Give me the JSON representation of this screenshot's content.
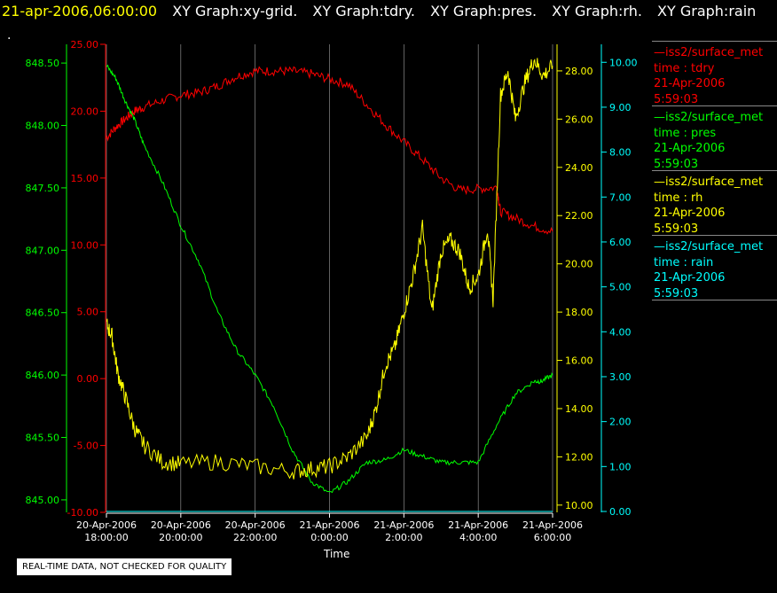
{
  "title": {
    "timestamp": "21-apr-2006,06:00:00",
    "graphs": [
      "XY Graph:xy-grid.",
      "XY Graph:tdry.",
      "XY Graph:pres.",
      "XY Graph:rh.",
      "XY Graph:rain"
    ],
    "dot": "."
  },
  "footer": "REAL-TIME DATA, NOT CHECKED FOR QUALITY",
  "colors": {
    "tdry": "#ff0000",
    "pres": "#00ff00",
    "rh": "#ffff00",
    "rain": "#00ffff",
    "grid": "#cccccc"
  },
  "legend": [
    {
      "station": "—iss2/surface_met",
      "field": "time : tdry",
      "date": "21-Apr-2006",
      "time": "5:59:03",
      "color": "#ff0000"
    },
    {
      "station": "—iss2/surface_met",
      "field": "time : pres",
      "date": "21-Apr-2006",
      "time": "5:59:03",
      "color": "#00ff00"
    },
    {
      "station": "—iss2/surface_met",
      "field": "time : rh",
      "date": "21-Apr-2006",
      "time": "5:59:03",
      "color": "#ffff00"
    },
    {
      "station": "—iss2/surface_met",
      "field": "time : rain",
      "date": "21-Apr-2006",
      "time": "5:59:03",
      "color": "#00ffff"
    }
  ],
  "chart_data": {
    "type": "line",
    "xlabel": "Time",
    "x_ticks": [
      {
        "date": "20-Apr-2006",
        "time": "18:00:00"
      },
      {
        "date": "20-Apr-2006",
        "time": "20:00:00"
      },
      {
        "date": "20-Apr-2006",
        "time": "22:00:00"
      },
      {
        "date": "21-Apr-2006",
        "time": "0:00:00"
      },
      {
        "date": "21-Apr-2006",
        "time": "2:00:00"
      },
      {
        "date": "21-Apr-2006",
        "time": "4:00:00"
      },
      {
        "date": "21-Apr-2006",
        "time": "6:00:00"
      }
    ],
    "x_range_hours": [
      0,
      12
    ],
    "axes": {
      "pres": {
        "range": [
          844.9,
          848.65
        ],
        "ticks": [
          "845.00",
          "845.50",
          "846.00",
          "846.50",
          "847.00",
          "847.50",
          "848.00",
          "848.50"
        ]
      },
      "tdry": {
        "range": [
          -10,
          25
        ],
        "ticks": [
          "-10.00",
          "-5.00",
          "0.00",
          "5.00",
          "10.00",
          "15.00",
          "20.00",
          "25.00"
        ]
      },
      "rh": {
        "range": [
          9.7,
          29.1
        ],
        "ticks": [
          "10.00",
          "12.00",
          "14.00",
          "16.00",
          "18.00",
          "20.00",
          "22.00",
          "24.00",
          "26.00",
          "28.00"
        ]
      },
      "rain": {
        "range": [
          -0.02,
          10.4
        ],
        "ticks": [
          "0.00",
          "1.00",
          "2.00",
          "3.00",
          "4.00",
          "5.00",
          "6.00",
          "7.00",
          "8.00",
          "9.00",
          "10.00"
        ]
      }
    },
    "series": [
      {
        "key": "tdry",
        "name": "time : tdry",
        "x": [
          0,
          0.25,
          0.5,
          0.75,
          1,
          1.5,
          2,
          2.5,
          3,
          3.5,
          4,
          4.5,
          5,
          5.5,
          6,
          6.5,
          7,
          7.5,
          8,
          8.5,
          9,
          9.5,
          10,
          10.5,
          10.6,
          11,
          11.5,
          12
        ],
        "y": [
          18,
          18.8,
          19.4,
          20,
          20.3,
          20.8,
          21.2,
          21.4,
          21.9,
          22.6,
          23,
          23,
          23,
          22.8,
          22.4,
          22,
          20.5,
          19,
          17.7,
          16.4,
          15,
          14.1,
          14.2,
          14.3,
          12.5,
          12,
          11.4,
          11
        ]
      },
      {
        "key": "pres",
        "name": "time : pres",
        "x": [
          0,
          0.25,
          0.5,
          0.75,
          1,
          1.5,
          2,
          2.5,
          3,
          3.5,
          4,
          4.5,
          5,
          5.5,
          6,
          6.5,
          7,
          7.5,
          8,
          8.5,
          9,
          9.5,
          10,
          10.5,
          11,
          11.5,
          11.7,
          12
        ],
        "y": [
          848.48,
          848.38,
          848.2,
          848.05,
          847.85,
          847.55,
          847.2,
          846.9,
          846.5,
          846.2,
          846.0,
          845.75,
          845.4,
          845.15,
          845.05,
          845.15,
          845.3,
          845.32,
          845.4,
          845.35,
          845.3,
          845.3,
          845.3,
          845.6,
          845.85,
          845.95,
          845.95,
          846.0
        ]
      },
      {
        "key": "rh",
        "name": "time : rh",
        "x": [
          0,
          0.15,
          0.3,
          0.5,
          0.75,
          1,
          1.5,
          2,
          3,
          4,
          5,
          5.5,
          6,
          6.5,
          7,
          7.25,
          7.5,
          7.75,
          8,
          8.25,
          8.5,
          8.75,
          9,
          9.25,
          9.5,
          9.75,
          10,
          10.25,
          10.4,
          10.6,
          10.8,
          11,
          11.25,
          11.5,
          11.75,
          12
        ],
        "y": [
          17.5,
          17,
          15.5,
          14.5,
          13.2,
          12.5,
          11.8,
          11.7,
          11.8,
          11.6,
          11.4,
          11.5,
          11.6,
          12,
          12.8,
          14,
          15.8,
          16.5,
          18,
          19.5,
          21.5,
          18,
          20.5,
          21,
          20.5,
          19,
          19.5,
          21.5,
          18.5,
          27,
          28,
          26,
          27.5,
          28.5,
          27.8,
          28.2
        ]
      },
      {
        "key": "rain",
        "name": "time : rain",
        "x": [
          0,
          12
        ],
        "y": [
          0,
          0
        ]
      }
    ],
    "grid": true
  }
}
